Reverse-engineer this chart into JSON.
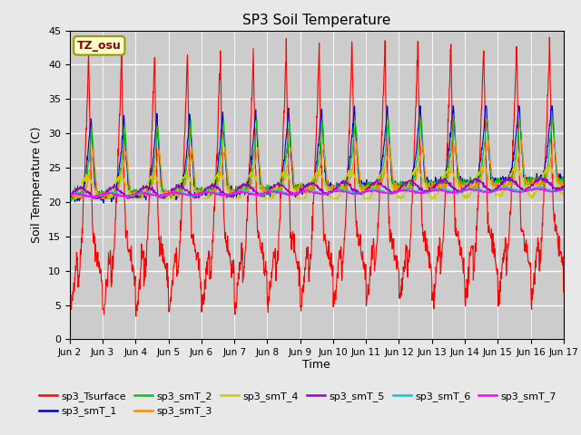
{
  "title": "SP3 Soil Temperature",
  "xlabel": "Time",
  "ylabel": "Soil Temperature (C)",
  "ylim": [
    0,
    45
  ],
  "background_color": "#e8e8e8",
  "plot_bg_color": "#cccccc",
  "tz_label": "TZ_osu",
  "legend": [
    {
      "label": "sp3_Tsurface",
      "color": "#ff0000"
    },
    {
      "label": "sp3_smT_1",
      "color": "#0000cc"
    },
    {
      "label": "sp3_smT_2",
      "color": "#00cc00"
    },
    {
      "label": "sp3_smT_3",
      "color": "#ff8800"
    },
    {
      "label": "sp3_smT_4",
      "color": "#cccc00"
    },
    {
      "label": "sp3_smT_5",
      "color": "#9900cc"
    },
    {
      "label": "sp3_smT_6",
      "color": "#00cccc"
    },
    {
      "label": "sp3_smT_7",
      "color": "#ff00ff"
    }
  ],
  "tick_labels": [
    "Jun 2",
    "Jun 3",
    "Jun 4",
    "Jun 5",
    "Jun 6",
    "Jun 7",
    "Jun 8",
    "Jun 9",
    "Jun 10",
    "Jun 11",
    "Jun 12",
    "Jun 13",
    "Jun 14",
    "Jun 15",
    "Jun 16",
    "Jun 17"
  ],
  "tick_positions": [
    0,
    1,
    2,
    3,
    4,
    5,
    6,
    7,
    8,
    9,
    10,
    11,
    12,
    13,
    14,
    15
  ],
  "yticks": [
    0,
    5,
    10,
    15,
    20,
    25,
    30,
    35,
    40,
    45
  ]
}
